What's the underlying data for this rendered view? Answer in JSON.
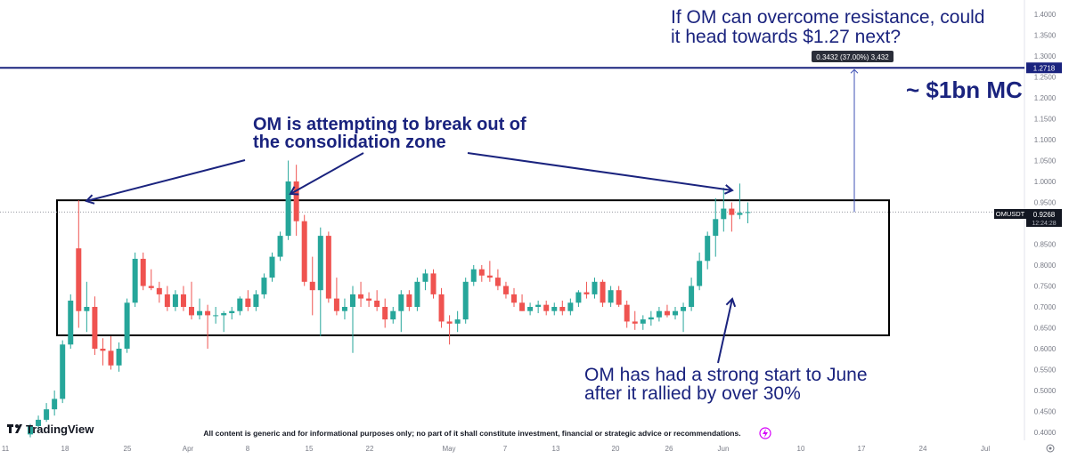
{
  "chart_data": {
    "type": "candlestick",
    "symbol": "OMUSDT",
    "last_price": "0.9268",
    "countdown": "12:24:28",
    "target_price": "1.2718",
    "measure_label": "0.3432 (37.00%) 3,432",
    "ylim": [
      0.38,
      1.43
    ],
    "y_ticks": [
      "1.4000",
      "1.3500",
      "1.3000",
      "1.2500",
      "1.2000",
      "1.1500",
      "1.1000",
      "1.0500",
      "1.0000",
      "0.9500",
      "0.9000",
      "0.8500",
      "0.8000",
      "0.7500",
      "0.7000",
      "0.6500",
      "0.6000",
      "0.5500",
      "0.5000",
      "0.4500",
      "0.4000"
    ],
    "x_ticks": [
      "11",
      "18",
      "25",
      "Apr",
      "8",
      "15",
      "22",
      "May",
      "7",
      "13",
      "20",
      "26",
      "Jun",
      "10",
      "17",
      "24",
      "Jul"
    ],
    "candle_colors": {
      "up": "#26a69a",
      "down": "#ef5350"
    },
    "annotation_color": "#1a237e",
    "consolidation_zone": {
      "top": 0.955,
      "bottom": 0.632
    },
    "candles": [
      {
        "o": 0.395,
        "h": 0.42,
        "l": 0.388,
        "c": 0.415
      },
      {
        "o": 0.415,
        "h": 0.44,
        "l": 0.405,
        "c": 0.43
      },
      {
        "o": 0.43,
        "h": 0.47,
        "l": 0.425,
        "c": 0.455
      },
      {
        "o": 0.455,
        "h": 0.5,
        "l": 0.44,
        "c": 0.48
      },
      {
        "o": 0.48,
        "h": 0.62,
        "l": 0.47,
        "c": 0.61
      },
      {
        "o": 0.61,
        "h": 0.73,
        "l": 0.6,
        "c": 0.715
      },
      {
        "o": 0.84,
        "h": 0.955,
        "l": 0.65,
        "c": 0.69
      },
      {
        "o": 0.69,
        "h": 0.76,
        "l": 0.64,
        "c": 0.7
      },
      {
        "o": 0.7,
        "h": 0.725,
        "l": 0.585,
        "c": 0.6
      },
      {
        "o": 0.6,
        "h": 0.625,
        "l": 0.56,
        "c": 0.595
      },
      {
        "o": 0.595,
        "h": 0.63,
        "l": 0.55,
        "c": 0.56
      },
      {
        "o": 0.56,
        "h": 0.615,
        "l": 0.545,
        "c": 0.6
      },
      {
        "o": 0.6,
        "h": 0.72,
        "l": 0.59,
        "c": 0.71
      },
      {
        "o": 0.71,
        "h": 0.83,
        "l": 0.7,
        "c": 0.815
      },
      {
        "o": 0.815,
        "h": 0.83,
        "l": 0.74,
        "c": 0.75
      },
      {
        "o": 0.75,
        "h": 0.79,
        "l": 0.74,
        "c": 0.745
      },
      {
        "o": 0.745,
        "h": 0.76,
        "l": 0.71,
        "c": 0.73
      },
      {
        "o": 0.73,
        "h": 0.75,
        "l": 0.69,
        "c": 0.7
      },
      {
        "o": 0.7,
        "h": 0.74,
        "l": 0.69,
        "c": 0.73
      },
      {
        "o": 0.73,
        "h": 0.75,
        "l": 0.69,
        "c": 0.7
      },
      {
        "o": 0.7,
        "h": 0.76,
        "l": 0.67,
        "c": 0.68
      },
      {
        "o": 0.68,
        "h": 0.72,
        "l": 0.67,
        "c": 0.69
      },
      {
        "o": 0.69,
        "h": 0.705,
        "l": 0.6,
        "c": 0.68
      },
      {
        "o": 0.68,
        "h": 0.7,
        "l": 0.66,
        "c": 0.68
      },
      {
        "o": 0.68,
        "h": 0.69,
        "l": 0.64,
        "c": 0.685
      },
      {
        "o": 0.685,
        "h": 0.7,
        "l": 0.67,
        "c": 0.69
      },
      {
        "o": 0.69,
        "h": 0.725,
        "l": 0.68,
        "c": 0.72
      },
      {
        "o": 0.72,
        "h": 0.74,
        "l": 0.69,
        "c": 0.7
      },
      {
        "o": 0.7,
        "h": 0.74,
        "l": 0.69,
        "c": 0.73
      },
      {
        "o": 0.73,
        "h": 0.78,
        "l": 0.72,
        "c": 0.77
      },
      {
        "o": 0.77,
        "h": 0.83,
        "l": 0.76,
        "c": 0.82
      },
      {
        "o": 0.82,
        "h": 0.88,
        "l": 0.81,
        "c": 0.87
      },
      {
        "o": 0.87,
        "h": 1.05,
        "l": 0.86,
        "c": 1.0
      },
      {
        "o": 1.0,
        "h": 1.04,
        "l": 0.87,
        "c": 0.905
      },
      {
        "o": 0.905,
        "h": 0.92,
        "l": 0.75,
        "c": 0.76
      },
      {
        "o": 0.76,
        "h": 0.82,
        "l": 0.68,
        "c": 0.74
      },
      {
        "o": 0.74,
        "h": 0.89,
        "l": 0.63,
        "c": 0.87
      },
      {
        "o": 0.87,
        "h": 0.88,
        "l": 0.71,
        "c": 0.72
      },
      {
        "o": 0.72,
        "h": 0.77,
        "l": 0.68,
        "c": 0.69
      },
      {
        "o": 0.69,
        "h": 0.72,
        "l": 0.67,
        "c": 0.7
      },
      {
        "o": 0.7,
        "h": 0.75,
        "l": 0.59,
        "c": 0.73
      },
      {
        "o": 0.73,
        "h": 0.76,
        "l": 0.7,
        "c": 0.72
      },
      {
        "o": 0.72,
        "h": 0.735,
        "l": 0.7,
        "c": 0.715
      },
      {
        "o": 0.715,
        "h": 0.74,
        "l": 0.69,
        "c": 0.7
      },
      {
        "o": 0.7,
        "h": 0.72,
        "l": 0.65,
        "c": 0.67
      },
      {
        "o": 0.67,
        "h": 0.7,
        "l": 0.66,
        "c": 0.69
      },
      {
        "o": 0.69,
        "h": 0.74,
        "l": 0.64,
        "c": 0.73
      },
      {
        "o": 0.73,
        "h": 0.74,
        "l": 0.69,
        "c": 0.7
      },
      {
        "o": 0.7,
        "h": 0.77,
        "l": 0.69,
        "c": 0.76
      },
      {
        "o": 0.76,
        "h": 0.79,
        "l": 0.74,
        "c": 0.78
      },
      {
        "o": 0.78,
        "h": 0.79,
        "l": 0.72,
        "c": 0.73
      },
      {
        "o": 0.73,
        "h": 0.745,
        "l": 0.65,
        "c": 0.665
      },
      {
        "o": 0.665,
        "h": 0.68,
        "l": 0.61,
        "c": 0.66
      },
      {
        "o": 0.66,
        "h": 0.69,
        "l": 0.64,
        "c": 0.67
      },
      {
        "o": 0.67,
        "h": 0.77,
        "l": 0.66,
        "c": 0.76
      },
      {
        "o": 0.76,
        "h": 0.8,
        "l": 0.75,
        "c": 0.79
      },
      {
        "o": 0.79,
        "h": 0.8,
        "l": 0.76,
        "c": 0.775
      },
      {
        "o": 0.775,
        "h": 0.81,
        "l": 0.76,
        "c": 0.77
      },
      {
        "o": 0.77,
        "h": 0.79,
        "l": 0.74,
        "c": 0.75
      },
      {
        "o": 0.75,
        "h": 0.76,
        "l": 0.72,
        "c": 0.73
      },
      {
        "o": 0.73,
        "h": 0.745,
        "l": 0.7,
        "c": 0.71
      },
      {
        "o": 0.71,
        "h": 0.73,
        "l": 0.69,
        "c": 0.69
      },
      {
        "o": 0.69,
        "h": 0.71,
        "l": 0.68,
        "c": 0.7
      },
      {
        "o": 0.7,
        "h": 0.715,
        "l": 0.685,
        "c": 0.705
      },
      {
        "o": 0.705,
        "h": 0.715,
        "l": 0.68,
        "c": 0.69
      },
      {
        "o": 0.69,
        "h": 0.71,
        "l": 0.68,
        "c": 0.7
      },
      {
        "o": 0.7,
        "h": 0.715,
        "l": 0.68,
        "c": 0.69
      },
      {
        "o": 0.69,
        "h": 0.72,
        "l": 0.68,
        "c": 0.71
      },
      {
        "o": 0.71,
        "h": 0.74,
        "l": 0.7,
        "c": 0.735
      },
      {
        "o": 0.735,
        "h": 0.76,
        "l": 0.72,
        "c": 0.73
      },
      {
        "o": 0.73,
        "h": 0.77,
        "l": 0.72,
        "c": 0.76
      },
      {
        "o": 0.76,
        "h": 0.765,
        "l": 0.7,
        "c": 0.71
      },
      {
        "o": 0.71,
        "h": 0.75,
        "l": 0.7,
        "c": 0.74
      },
      {
        "o": 0.74,
        "h": 0.75,
        "l": 0.7,
        "c": 0.705
      },
      {
        "o": 0.705,
        "h": 0.715,
        "l": 0.65,
        "c": 0.665
      },
      {
        "o": 0.665,
        "h": 0.69,
        "l": 0.645,
        "c": 0.66
      },
      {
        "o": 0.66,
        "h": 0.68,
        "l": 0.645,
        "c": 0.67
      },
      {
        "o": 0.67,
        "h": 0.69,
        "l": 0.655,
        "c": 0.675
      },
      {
        "o": 0.675,
        "h": 0.7,
        "l": 0.665,
        "c": 0.69
      },
      {
        "o": 0.69,
        "h": 0.705,
        "l": 0.675,
        "c": 0.68
      },
      {
        "o": 0.68,
        "h": 0.7,
        "l": 0.67,
        "c": 0.69
      },
      {
        "o": 0.69,
        "h": 0.71,
        "l": 0.64,
        "c": 0.7
      },
      {
        "o": 0.7,
        "h": 0.77,
        "l": 0.69,
        "c": 0.75
      },
      {
        "o": 0.75,
        "h": 0.83,
        "l": 0.74,
        "c": 0.81
      },
      {
        "o": 0.81,
        "h": 0.88,
        "l": 0.79,
        "c": 0.87
      },
      {
        "o": 0.87,
        "h": 0.96,
        "l": 0.82,
        "c": 0.91
      },
      {
        "o": 0.91,
        "h": 0.985,
        "l": 0.88,
        "c": 0.935
      },
      {
        "o": 0.935,
        "h": 0.95,
        "l": 0.88,
        "c": 0.92
      },
      {
        "o": 0.92,
        "h": 0.995,
        "l": 0.91,
        "c": 0.925
      },
      {
        "o": 0.925,
        "h": 0.95,
        "l": 0.9,
        "c": 0.9268
      }
    ]
  },
  "annotations": {
    "top_question": [
      "If OM can overcome resistance, could",
      "it head towards $1.27 next?"
    ],
    "market_cap": "~ $1bn MC",
    "breakout_note": [
      "OM is attempting to break out of",
      "the consolidation zone"
    ],
    "june_note": [
      "OM has had a strong start to June",
      "after it rallied by over 30%"
    ]
  },
  "footer": {
    "brand": "TradingView",
    "disclaimer": "All content is generic and for informational purposes only; no part of it shall constitute investment, financial or strategic advice or recommendations."
  }
}
